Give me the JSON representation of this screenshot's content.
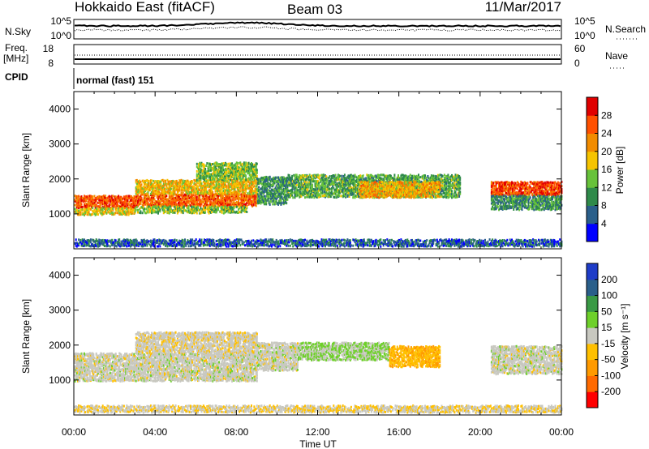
{
  "header": {
    "title": "Hokkaido East (fitACF)",
    "beam": "Beam 03",
    "date": "11/Mar/2017"
  },
  "nsky_panel": {
    "left_label": "N.Sky",
    "right_label": "N.Search",
    "left_ticks": [
      "10^5",
      "10^0"
    ],
    "right_ticks": [
      "10^5",
      "10^0"
    ]
  },
  "freq_panel": {
    "left_label_1": "Freq.",
    "left_label_2": "[MHz]",
    "right_label": "Nave",
    "left_ticks": [
      "18",
      "8"
    ],
    "right_ticks": [
      "60",
      "0"
    ]
  },
  "cpid": {
    "label": "CPID",
    "text": "normal (fast) 151"
  },
  "axes": {
    "ylabel": "Slant Range [km]",
    "yticks": [
      1000,
      2000,
      3000,
      4000
    ],
    "xticks": [
      "00:00",
      "04:00",
      "08:00",
      "12:00",
      "16:00",
      "20:00",
      "00:00"
    ],
    "xlabel": "Time UT"
  },
  "colors": {
    "power": [
      "#0000ff",
      "#2a5f8a",
      "#2f8a4a",
      "#67c23a",
      "#f6c400",
      "#f28c00",
      "#ff5000",
      "#e00000"
    ],
    "velocity": [
      "#ff0000",
      "#ff6a00",
      "#ff9a00",
      "#ffc000",
      "#c8c8c0",
      "#6ed02a",
      "#3a9a45",
      "#2a5f8a",
      "#1e3cc8"
    ]
  },
  "chart_data": [
    {
      "type": "heatmap",
      "name": "power",
      "x_range_hours": [
        0,
        24
      ],
      "ylim": [
        0,
        4500
      ],
      "colorbar": {
        "label": "Power [dB]",
        "ticks": [
          4,
          8,
          12,
          16,
          20,
          24,
          28
        ],
        "range": [
          0,
          32
        ]
      },
      "regions": [
        {
          "t": [
            0,
            3
          ],
          "r": [
            1200,
            1550
          ],
          "level": 26
        },
        {
          "t": [
            0,
            3
          ],
          "r": [
            1000,
            1200
          ],
          "level": 18
        },
        {
          "t": [
            3,
            9
          ],
          "r": [
            1250,
            1600
          ],
          "level": 25
        },
        {
          "t": [
            3,
            9
          ],
          "r": [
            1600,
            2000
          ],
          "level": 19
        },
        {
          "t": [
            3,
            8.5
          ],
          "r": [
            1050,
            1250
          ],
          "level": 14
        },
        {
          "t": [
            6,
            9
          ],
          "r": [
            2000,
            2500
          ],
          "level": 14
        },
        {
          "t": [
            9,
            10.5
          ],
          "r": [
            1300,
            2100
          ],
          "level": 10
        },
        {
          "t": [
            10.5,
            19
          ],
          "r": [
            1500,
            2150
          ],
          "level": 12
        },
        {
          "t": [
            14,
            18
          ],
          "r": [
            1500,
            1950
          ],
          "level": 20
        },
        {
          "t": [
            20.5,
            24
          ],
          "r": [
            1550,
            1950
          ],
          "level": 27
        },
        {
          "t": [
            20.5,
            24
          ],
          "r": [
            1150,
            1550
          ],
          "level": 10
        },
        {
          "t": [
            0,
            24
          ],
          "r": [
            100,
            300
          ],
          "level": 6
        }
      ]
    },
    {
      "type": "heatmap",
      "name": "velocity",
      "x_range_hours": [
        0,
        24
      ],
      "ylim": [
        0,
        4500
      ],
      "colorbar": {
        "label": "Velocity [m s⁻¹]",
        "ticks": [
          -200,
          -100,
          -50,
          -15,
          15,
          50,
          100,
          200
        ],
        "range": [
          -250,
          250
        ]
      },
      "regions": [
        {
          "t": [
            0,
            9
          ],
          "r": [
            1000,
            1800
          ],
          "level": 0
        },
        {
          "t": [
            3,
            9
          ],
          "r": [
            1800,
            2400
          ],
          "level": -10
        },
        {
          "t": [
            9,
            11
          ],
          "r": [
            1300,
            2100
          ],
          "level": 0
        },
        {
          "t": [
            11,
            15.5
          ],
          "r": [
            1600,
            2100
          ],
          "level": 30
        },
        {
          "t": [
            15.5,
            18
          ],
          "r": [
            1400,
            2000
          ],
          "level": -70
        },
        {
          "t": [
            20.5,
            24
          ],
          "r": [
            1200,
            2000
          ],
          "level": 0
        },
        {
          "t": [
            0,
            24
          ],
          "r": [
            100,
            300
          ],
          "level": -20
        }
      ]
    }
  ]
}
